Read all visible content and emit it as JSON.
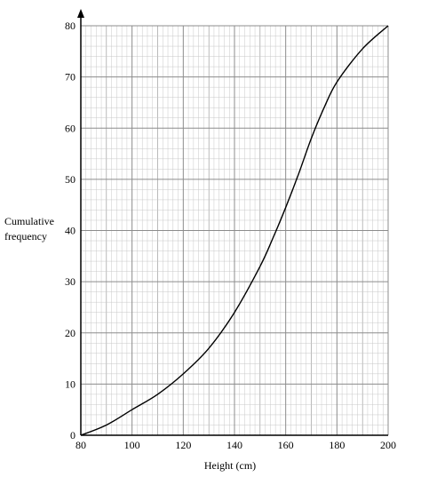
{
  "chart_data": {
    "type": "line",
    "title": "",
    "xlabel": "Height (cm)",
    "ylabel_lines": [
      "Cumulative",
      "frequency"
    ],
    "xlim": [
      80,
      200
    ],
    "ylim": [
      0,
      80
    ],
    "x_major_step": 20,
    "x_minor_step": 2,
    "y_major_step": 10,
    "y_minor_step": 2,
    "x_ticks": [
      80,
      100,
      120,
      140,
      160,
      180,
      200
    ],
    "y_ticks": [
      0,
      10,
      20,
      30,
      40,
      50,
      60,
      70,
      80
    ],
    "grid": true,
    "series": [
      {
        "x": [
          80,
          90,
          100,
          110,
          120,
          130,
          140,
          150,
          155,
          160,
          165,
          170,
          175,
          180,
          190,
          200
        ],
        "y": [
          0,
          2,
          5,
          8,
          12,
          17,
          24,
          33,
          38.5,
          44.5,
          51,
          58,
          64,
          69,
          75.5,
          80
        ]
      }
    ],
    "colors": {
      "major_grid": "#8c8c8c",
      "minor_grid": "#c8c8c8",
      "curve": "#000000",
      "axis": "#000000"
    }
  }
}
